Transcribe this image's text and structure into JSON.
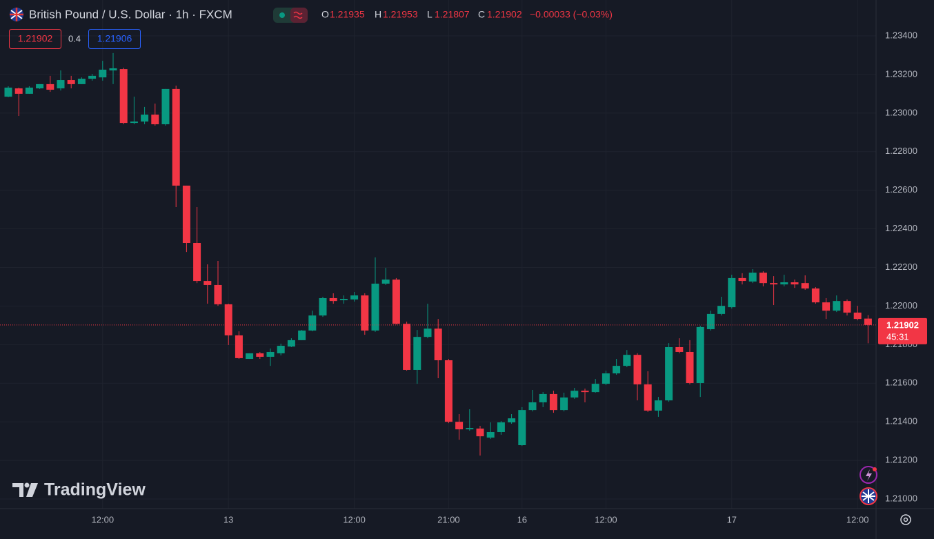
{
  "chart_data": {
    "type": "candlestick",
    "title": "British Pound / U.S. Dollar · 1h · FXCM",
    "legend": {
      "open_label": "O",
      "open": 1.21935,
      "high_label": "H",
      "high": 1.21953,
      "low_label": "L",
      "low": 1.21807,
      "close_label": "C",
      "close": 1.21902,
      "change": "−0.00033 (−0.03%)"
    },
    "bid": 1.21902,
    "spread": 0.4,
    "ask": 1.21906,
    "last_price": 1.21902,
    "countdown": "45:31",
    "watermark": "TradingView",
    "up_color": "#089981",
    "down_color": "#f23645",
    "grid": true,
    "ylim": [
      1.2095,
      1.23586
    ],
    "yticks": [
      {
        "value": 1.234,
        "label": "1.23400"
      },
      {
        "value": 1.232,
        "label": "1.23200"
      },
      {
        "value": 1.23,
        "label": "1.23000"
      },
      {
        "value": 1.228,
        "label": "1.22800"
      },
      {
        "value": 1.226,
        "label": "1.22600"
      },
      {
        "value": 1.224,
        "label": "1.22400"
      },
      {
        "value": 1.222,
        "label": "1.22200"
      },
      {
        "value": 1.22,
        "label": "1.22000"
      },
      {
        "value": 1.218,
        "label": "1.21800"
      },
      {
        "value": 1.216,
        "label": "1.21600"
      },
      {
        "value": 1.214,
        "label": "1.21400"
      },
      {
        "value": 1.212,
        "label": "1.21200"
      },
      {
        "value": 1.21,
        "label": "1.21000"
      }
    ],
    "categories": [
      null,
      null,
      null,
      null,
      null,
      null,
      null,
      null,
      null,
      "12:00",
      null,
      null,
      null,
      null,
      null,
      null,
      null,
      null,
      null,
      null,
      null,
      "13",
      null,
      null,
      null,
      null,
      null,
      null,
      null,
      null,
      null,
      null,
      null,
      "12:00",
      null,
      null,
      null,
      null,
      null,
      null,
      null,
      null,
      "21:00",
      null,
      null,
      null,
      null,
      null,
      null,
      "16",
      null,
      null,
      null,
      null,
      null,
      null,
      null,
      "12:00",
      null,
      null,
      null,
      null,
      null,
      null,
      null,
      null,
      null,
      null,
      null,
      "17",
      null,
      null,
      null,
      null,
      null,
      null,
      null,
      null,
      null,
      null,
      null,
      "12:00",
      null
    ],
    "ohlc": [
      [
        1.23085,
        1.23139,
        1.23082,
        1.23132
      ],
      [
        1.23128,
        1.23132,
        1.22985,
        1.231
      ],
      [
        1.231,
        1.23139,
        1.231,
        1.23132
      ],
      [
        1.23128,
        1.2315,
        1.23125,
        1.2315
      ],
      [
        1.2315,
        1.23193,
        1.2311,
        1.23121
      ],
      [
        1.23128,
        1.23221,
        1.23117,
        1.23171
      ],
      [
        1.23171,
        1.23193,
        1.23128,
        1.2315
      ],
      [
        1.2315,
        1.23185,
        1.2315,
        1.23178
      ],
      [
        1.23178,
        1.23203,
        1.23168,
        1.23193
      ],
      [
        1.23185,
        1.23271,
        1.23168,
        1.23225
      ],
      [
        1.23221,
        1.23311,
        1.2315,
        1.23232
      ],
      [
        1.23228,
        1.23235,
        1.22942,
        1.22949
      ],
      [
        1.22949,
        1.23085,
        1.22942,
        1.22956
      ],
      [
        1.22956,
        1.23032,
        1.22942,
        1.22992
      ],
      [
        1.22992,
        1.23049,
        1.22935,
        1.22942
      ],
      [
        1.22942,
        1.23125,
        1.22935,
        1.23125
      ],
      [
        1.23125,
        1.23142,
        1.22513,
        1.22624
      ],
      [
        1.22624,
        1.22624,
        1.2228,
        1.22327
      ],
      [
        1.22327,
        1.22513,
        1.22119,
        1.2213
      ],
      [
        1.2213,
        1.22216,
        1.22012,
        1.22109
      ],
      [
        1.22109,
        1.22234,
        1.22001,
        1.22009
      ],
      [
        1.22009,
        1.22012,
        1.21798,
        1.21848
      ],
      [
        1.21848,
        1.21869,
        1.21726,
        1.2173
      ],
      [
        1.21726,
        1.21755,
        1.21726,
        1.21755
      ],
      [
        1.21755,
        1.21762,
        1.21726,
        1.21737
      ],
      [
        1.21737,
        1.2178,
        1.2169,
        1.21762
      ],
      [
        1.21755,
        1.21805,
        1.21744,
        1.21794
      ],
      [
        1.2179,
        1.21833,
        1.21787,
        1.21823
      ],
      [
        1.21823,
        1.21876,
        1.21823,
        1.21873
      ],
      [
        1.21873,
        1.21976,
        1.21869,
        1.21951
      ],
      [
        1.21951,
        1.22048,
        1.21944,
        1.22041
      ],
      [
        1.22041,
        1.22066,
        1.22012,
        1.22026
      ],
      [
        1.2203,
        1.22055,
        1.22012,
        1.22037
      ],
      [
        1.22034,
        1.22073,
        1.22023,
        1.22055
      ],
      [
        1.22055,
        1.22066,
        1.21851,
        1.21873
      ],
      [
        1.21873,
        1.22252,
        1.21866,
        1.22116
      ],
      [
        1.22116,
        1.22198,
        1.22109,
        1.22137
      ],
      [
        1.22137,
        1.22145,
        1.21905,
        1.21908
      ],
      [
        1.21908,
        1.21919,
        1.21665,
        1.21669
      ],
      [
        1.21669,
        1.21876,
        1.21597,
        1.2184
      ],
      [
        1.2184,
        1.22012,
        1.21833,
        1.21883
      ],
      [
        1.21883,
        1.21933,
        1.21626,
        1.21719
      ],
      [
        1.21719,
        1.21726,
        1.21393,
        1.214
      ],
      [
        1.214,
        1.2144,
        1.21307,
        1.21361
      ],
      [
        1.21361,
        1.21465,
        1.21354,
        1.21368
      ],
      [
        1.21365,
        1.21379,
        1.21225,
        1.21325
      ],
      [
        1.21318,
        1.21397,
        1.21311,
        1.21347
      ],
      [
        1.21347,
        1.21404,
        1.21333,
        1.21397
      ],
      [
        1.21397,
        1.2144,
        1.2139,
        1.21418
      ],
      [
        1.21279,
        1.21476,
        1.21275,
        1.21461
      ],
      [
        1.21461,
        1.21565,
        1.21454,
        1.21501
      ],
      [
        1.21501,
        1.21554,
        1.21476,
        1.21544
      ],
      [
        1.21544,
        1.21561,
        1.21447,
        1.21461
      ],
      [
        1.21461,
        1.21551,
        1.21454,
        1.21526
      ],
      [
        1.21526,
        1.21576,
        1.21519,
        1.21561
      ],
      [
        1.21561,
        1.21572,
        1.21501,
        1.21554
      ],
      [
        1.21554,
        1.21622,
        1.21551,
        1.21597
      ],
      [
        1.21597,
        1.21665,
        1.2159,
        1.21651
      ],
      [
        1.21651,
        1.21726,
        1.21644,
        1.2169
      ],
      [
        1.2169,
        1.21772,
        1.21683,
        1.21747
      ],
      [
        1.21747,
        1.21755,
        1.21511,
        1.21594
      ],
      [
        1.21594,
        1.21662,
        1.21451,
        1.21458
      ],
      [
        1.21458,
        1.21529,
        1.21426,
        1.21511
      ],
      [
        1.21511,
        1.21808,
        1.21504,
        1.21787
      ],
      [
        1.21787,
        1.21833,
        1.21755,
        1.21762
      ],
      [
        1.21762,
        1.21823,
        1.21594,
        1.21601
      ],
      [
        1.21601,
        1.21898,
        1.21529,
        1.21891
      ],
      [
        1.2188,
        1.21976,
        1.21873,
        1.21959
      ],
      [
        1.21959,
        1.22048,
        1.21951,
        1.22001
      ],
      [
        1.21994,
        1.22162,
        1.21987,
        1.22145
      ],
      [
        1.22145,
        1.2217,
        1.22112,
        1.2213
      ],
      [
        1.22127,
        1.22191,
        1.22119,
        1.22173
      ],
      [
        1.22173,
        1.2218,
        1.22102,
        1.22119
      ],
      [
        1.22119,
        1.22155,
        1.22005,
        1.22112
      ],
      [
        1.22112,
        1.22162,
        1.22102,
        1.22123
      ],
      [
        1.22123,
        1.22137,
        1.22094,
        1.22112
      ],
      [
        1.22119,
        1.22159,
        1.22084,
        1.22091
      ],
      [
        1.22091,
        1.22098,
        1.22012,
        1.22019
      ],
      [
        1.22019,
        1.22041,
        1.21933,
        1.21976
      ],
      [
        1.21976,
        1.22055,
        1.21969,
        1.22026
      ],
      [
        1.22026,
        1.22034,
        1.21951,
        1.21966
      ],
      [
        1.21966,
        1.22001,
        1.21926,
        1.21933
      ],
      [
        1.21935,
        1.21953,
        1.21807,
        1.21902
      ]
    ]
  }
}
